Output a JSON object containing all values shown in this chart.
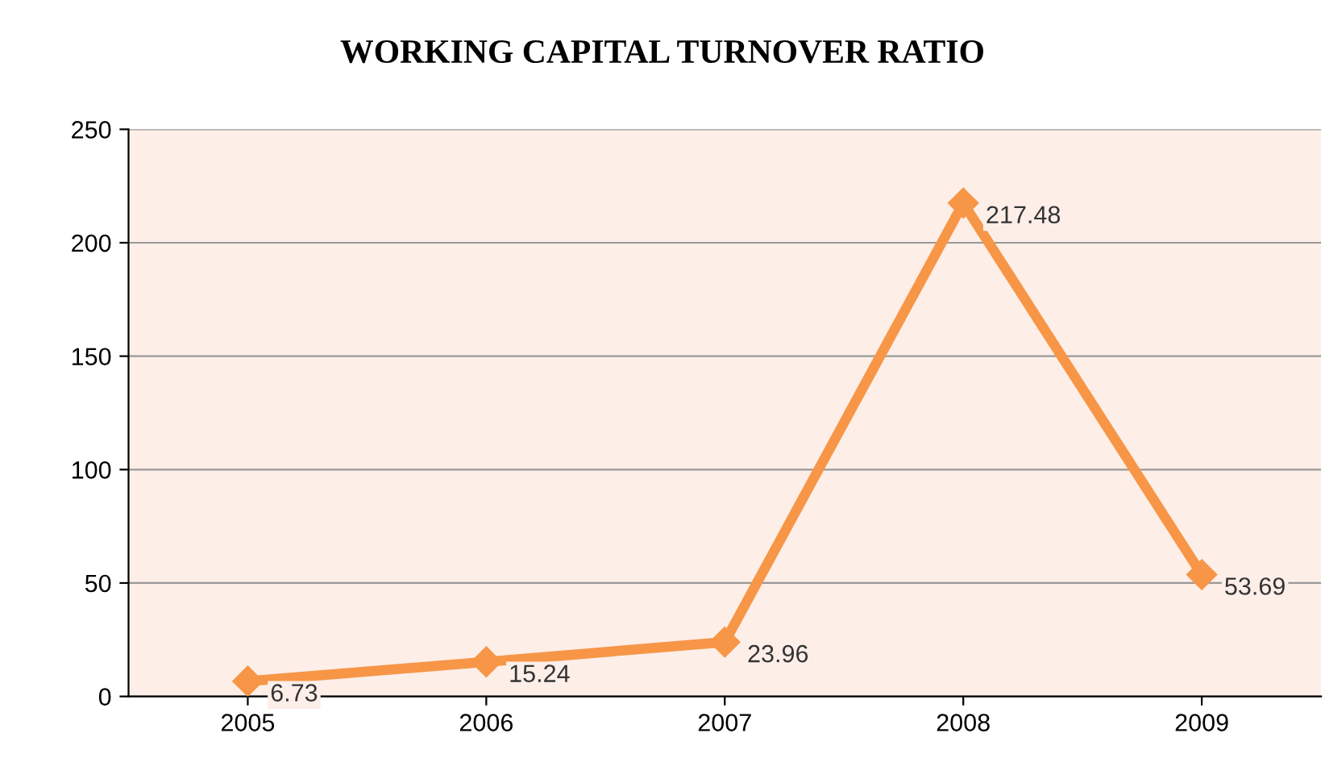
{
  "chart_data": {
    "type": "line",
    "title": "WORKING CAPITAL TURNOVER RATIO",
    "categories": [
      "2005",
      "2006",
      "2007",
      "2008",
      "2009"
    ],
    "series": [
      {
        "color": "#f79646",
        "values": [
          6.73,
          15.24,
          23.96,
          217.48,
          53.69
        ]
      }
    ],
    "ylim": [
      0,
      250
    ],
    "yticks": [
      0,
      50,
      100,
      150,
      200,
      250
    ],
    "grid": "y",
    "marker": "diamond",
    "line_style": "solid",
    "data_labels": true,
    "legend": false
  }
}
